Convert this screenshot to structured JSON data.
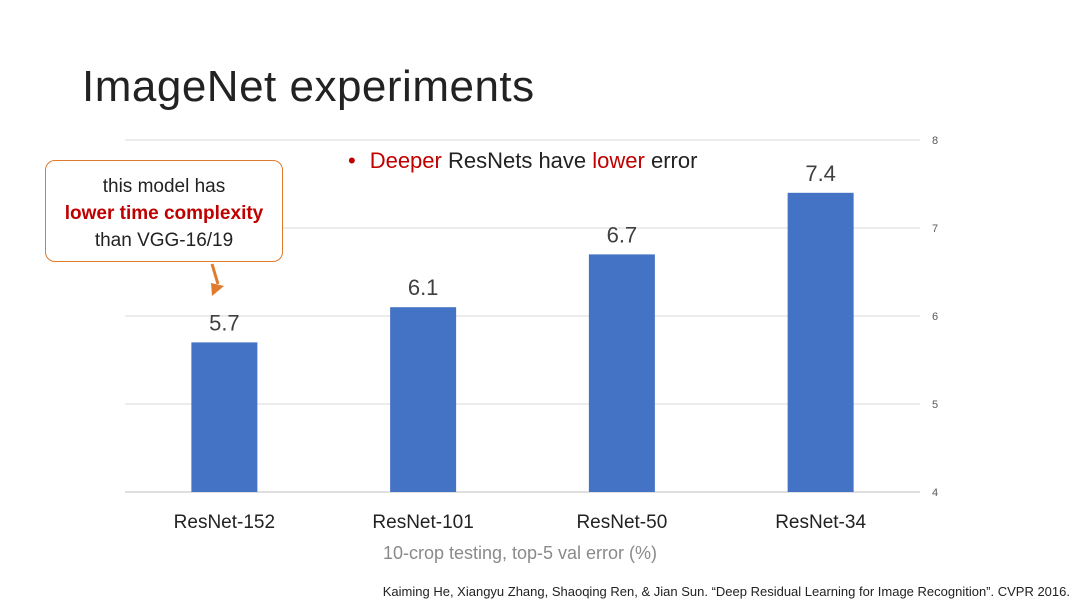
{
  "slide": {
    "title": "ImageNet experiments",
    "bullet": {
      "symbol": "•",
      "part1": "Deeper",
      "part2": " ResNets have ",
      "part3": "lower",
      "part4": " error"
    },
    "callout": {
      "line1": "this model has",
      "line2": "lower time complexity",
      "line3": "than VGG-16/19"
    },
    "citation": "Kaiming He, Xiangyu Zhang, Shaoqing Ren, & Jian Sun. “Deep Residual Learning for Image Recognition”. CVPR 2016."
  },
  "colors": {
    "bar": "#4472c4",
    "highlight": "#c00000",
    "callout_border": "#e07b2e",
    "grid": "#d9d9d9"
  },
  "chart_data": {
    "type": "bar",
    "categories": [
      "ResNet-152",
      "ResNet-101",
      "ResNet-50",
      "ResNet-34"
    ],
    "values": [
      5.7,
      6.1,
      6.7,
      7.4
    ],
    "data_labels": [
      "5.7",
      "6.1",
      "6.7",
      "7.4"
    ],
    "xlabel": "10-crop testing, top-5 val error (%)",
    "ylabel": "",
    "ylim": [
      4,
      8
    ],
    "yticks": [
      4,
      5,
      6,
      7,
      8
    ],
    "grid": true,
    "y_axis_position": "right"
  }
}
